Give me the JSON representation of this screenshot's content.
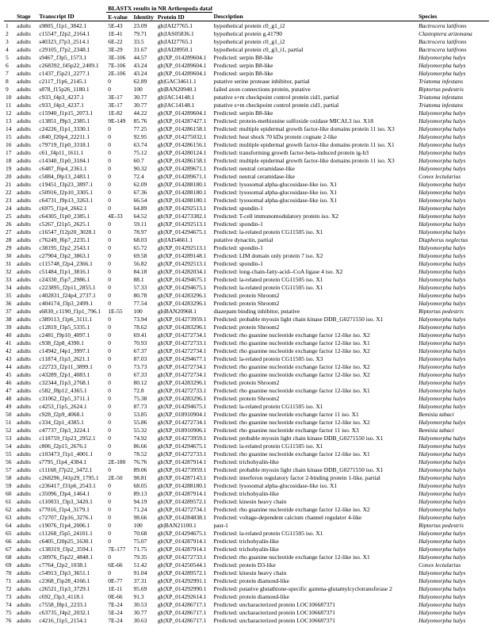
{
  "header": {
    "blastx_group": "BLASTX results in NR Arthropoda database (E-value ≤ 1E-10)",
    "cols": {
      "num": "",
      "stage": "Stage",
      "tid": "Transcript ID",
      "evalue": "E-value",
      "identity": "Identity",
      "pid": "Protein ID",
      "desc": "Description",
      "species": "Species"
    }
  },
  "rows": [
    {
      "n": "1",
      "stage": "adults",
      "tid": "s9805_f1p1_3842.1",
      "e": "5E-43",
      "id": "23.09",
      "pid": "gb|JAI27765.1",
      "desc": "hypothetical protein c0_g1_i2",
      "sp": "Bactrocera latifrons"
    },
    {
      "n": "2",
      "stage": "adults",
      "tid": "c15547_f2p2_2164.1",
      "e": "1E-41",
      "id": "79.71",
      "pid": "gb|JAS05836.1",
      "desc": "hypothetical protein g.41790",
      "sp": "Clastoptera arizonana"
    },
    {
      "n": "3",
      "stage": "adults",
      "tid": "s40323_f7p3_2514.1",
      "e": "6E-22",
      "id": "33.5",
      "pid": "gb|JAI27765.1",
      "desc": "hypothetical protein c0_g1_i2",
      "sp": "Bactrocera latifrons"
    },
    {
      "n": "4",
      "stage": "adults",
      "tid": "c29105_f7p2_2348.1",
      "e": "3E-29",
      "id": "31.67",
      "pid": "gb|JAI28950.1",
      "desc": "hypothetical protein c0_g3_i1, partial",
      "sp": "Bactrocera latifrons"
    },
    {
      "n": "5",
      "stage": "adults",
      "tid": "s9467_f3p5_1573.1",
      "e": "3E-106",
      "id": "44.57",
      "pid": "gb|XP_014289604.1",
      "desc": "Predicted: serpin B8-like",
      "sp": "Halyomorpha halys"
    },
    {
      "n": "6",
      "stage": "adults",
      "tid": "c268392_f45p22_2409.1",
      "e": "7E-106",
      "id": "43.24",
      "pid": "gb|XP_014289604.1",
      "desc": "Predicted: serpin B8-like",
      "sp": "Halyomorpha halys"
    },
    {
      "n": "7",
      "stage": "adults",
      "tid": "c1437_f5p21_2277.1",
      "e": "2E-106",
      "id": "43.24",
      "pid": "gb|XP_014289604.1",
      "desc": "Predicted: serpin B8-like",
      "sp": "Halyomorpha halys"
    },
    {
      "n": "8",
      "stage": "adults",
      "tid": "c2117_f1p6_2145.1",
      "e": "0",
      "id": "62.89",
      "pid": "gb|GAC34611.1",
      "desc": "putative serine protease inhibitor, partial",
      "sp": "Triatoma infestans"
    },
    {
      "n": "9",
      "stage": "adults",
      "tid": "s878_f15p26_1180.1",
      "e": "0",
      "id": "100",
      "pid": "gb|BAN20940.1",
      "desc": "failed axon connections protein, putative",
      "sp": "Riptortus pedestris"
    },
    {
      "n": "10",
      "stage": "adults",
      "tid": "c933_f4p3_4237.1",
      "e": "3E-17",
      "id": "30.77",
      "pid": "gb|JAC14148.1",
      "desc": "putative s+m checkpoint control protein cid1, partial",
      "sp": "Triatoma infestans"
    },
    {
      "n": "11",
      "stage": "adults",
      "tid": "c933_f4p3_4237.1",
      "e": "3E-17",
      "id": "30.77",
      "pid": "gb|JAC14148.1",
      "desc": "putative s+m checkpoint control protein cid1, partial",
      "sp": "Triatoma infestans"
    },
    {
      "n": "12",
      "stage": "adults",
      "tid": "c15940_f1p15_2073.1",
      "e": "1E-82",
      "id": "44.22",
      "pid": "gb|XP_014289604.1",
      "desc": "Predicted: serpin B8-like",
      "sp": "Halyomorpha halys"
    },
    {
      "n": "13",
      "stage": "adults",
      "tid": "c13851_f9p3_2385.1",
      "e": "9E-149",
      "id": "85.76",
      "pid": "gb|XP_014287427.1",
      "desc": "Predicted: protein-methionine sulfoxide oxidase MICAL3 iso. X18",
      "sp": "Halyomorpha halys"
    },
    {
      "n": "14",
      "stage": "adults",
      "tid": "c24226_f1p1_3330.1",
      "e": "0",
      "id": "77.25",
      "pid": "gb|XP_014286158.1",
      "desc": "Predicted: multiple epidermal growth factor-like domains protein 11 iso. X3",
      "sp": "Halyomorpha halys"
    },
    {
      "n": "15",
      "stage": "adults",
      "tid": "c840_f20p4_22211.1",
      "e": "0",
      "id": "92.95",
      "pid": "gb|XP_014275032.1",
      "desc": "Predicted: heat shock 70 kDa protein cognate 2-like",
      "sp": "Halyomorpha halys"
    },
    {
      "n": "16",
      "stage": "adults",
      "tid": "c79719_f1p0_3318.1",
      "e": "0",
      "id": "63.74",
      "pid": "gb|XP_014286156.1",
      "desc": "Predicted: multiple epidermal growth factor-like domains protein 11 iso. X1",
      "sp": "Halyomorpha halys"
    },
    {
      "n": "17",
      "stage": "adults",
      "tid": "c61_f4p11_1611.1",
      "e": "0",
      "id": "75.12",
      "pid": "gb|XP_014280124.1",
      "desc": "Predicted: transforming growth factor-beta-induced protein ig-h3",
      "sp": "Halyomorpha halys"
    },
    {
      "n": "18",
      "stage": "adults",
      "tid": "c14340_f1p0_3184.1",
      "e": "0",
      "id": "60.7",
      "pid": "gb|XP_014286158.1",
      "desc": "Predicted: multiple epidermal growth factor-like domains protein 11 iso. X3",
      "sp": "Halyomorpha halys"
    },
    {
      "n": "19",
      "stage": "adults",
      "tid": "c6487_f6p4_2361.1",
      "e": "0",
      "id": "90.32",
      "pid": "gb|XP_014289671.1",
      "desc": "Predicted: neutral ceramidase-like",
      "sp": "Halyomorpha halys"
    },
    {
      "n": "20",
      "stage": "adults",
      "tid": "c5884_f8p13_2483.1",
      "e": "0",
      "id": "72.4",
      "pid": "gb|XP_014289671.1",
      "desc": "Predicted: neutral ceramidase-like",
      "sp": "Conex lectularius"
    },
    {
      "n": "21",
      "stage": "adults",
      "tid": "c19451_f3p23_3897.1",
      "e": "0",
      "id": "62.09",
      "pid": "gb|XP_014288180.1",
      "desc": "Predicted: lysosomal alpha-glucosidase-like iso. X1",
      "sp": "Halyomorpha halys"
    },
    {
      "n": "22",
      "stage": "adults",
      "tid": "c50916_f2p10_3305.1",
      "e": "0",
      "id": "67.36",
      "pid": "gb|XP_014288180.1",
      "desc": "Predicted: lysosomal alpha-glucosidase-like iso. X1",
      "sp": "Halyomorpha halys"
    },
    {
      "n": "23",
      "stage": "adults",
      "tid": "c64731_f9p13_3263.1",
      "e": "0",
      "id": "66.54",
      "pid": "gb|XP_014288180.1",
      "desc": "Predicted: lysosomal alpha-glucosidase-like iso. X1",
      "sp": "Halyomorpha halys"
    },
    {
      "n": "24",
      "stage": "adults",
      "tid": "c6975_f1p4_2662.1",
      "e": "0",
      "id": "64.89",
      "pid": "gb|XP_014292513.1",
      "desc": "Predicted: spondin-1",
      "sp": "Halyomorpha halys"
    },
    {
      "n": "25",
      "stage": "adults",
      "tid": "c64305_f1p0_2385.1",
      "e": "4E-33",
      "id": "64.52",
      "pid": "gb|XP_014273382.1",
      "desc": "Predicted: T-cell immunomodulatory protein iso. X2",
      "sp": "Halyomorpha halys"
    },
    {
      "n": "26",
      "stage": "adults",
      "tid": "c5267_f21p5_2625.1",
      "e": "0",
      "id": "59.11",
      "pid": "gb|XP_014292513.1",
      "desc": "Predicted: spondin-1",
      "sp": "Halyomorpha halys"
    },
    {
      "n": "27",
      "stage": "adults",
      "tid": "c16547_f12p20_3028.1",
      "e": "0",
      "id": "78.97",
      "pid": "gb|XP_014294675.1",
      "desc": "Predicted: la-related protein CG11505 iso. X1",
      "sp": "Halyomorpha halys"
    },
    {
      "n": "28",
      "stage": "adults",
      "tid": "c76249_f6p7_2235.1",
      "e": "0",
      "id": "68.03",
      "pid": "gb|JAI54661.1",
      "desc": "putative dynactin, partial",
      "sp": "Diaphorus neglectus"
    },
    {
      "n": "29",
      "stage": "adults",
      "tid": "c38195_f2p2_2543.1",
      "e": "0",
      "id": "65.72",
      "pid": "gb|XP_014292513.1",
      "desc": "Predicted: spondin-1",
      "sp": "Halyomorpha halys"
    },
    {
      "n": "30",
      "stage": "adults",
      "tid": "c27904_f3p2_3863.1",
      "e": "0",
      "id": "69.58",
      "pid": "gb|XP_014289148.1",
      "desc": "Predicted: LIM domain only protein 7 iso. X2",
      "sp": "Halyomorpha halys"
    },
    {
      "n": "31",
      "stage": "adults",
      "tid": "c115748_f2p4_2366.1",
      "e": "0",
      "id": "56.82",
      "pid": "gb|XP_014292513.1",
      "desc": "Predicted: spondin-1",
      "sp": "Halyomorpha halys"
    },
    {
      "n": "32",
      "stage": "adults",
      "tid": "c51484_f1p1_3816.1",
      "e": "0",
      "id": "84.18",
      "pid": "gb|XP_014282034.1",
      "desc": "Predicted: long-chain-fatty-acid--CoA ligase 4 iso. X2",
      "sp": "Halyomorpha halys"
    },
    {
      "n": "33",
      "stage": "adults",
      "tid": "c24330_f5p7_2986.1",
      "e": "0",
      "id": "88.1",
      "pid": "gb|XP_014294675.1",
      "desc": "Predicted: la-related protein CG11505 iso. X1",
      "sp": "Halyomorpha halys"
    },
    {
      "n": "34",
      "stage": "adults",
      "tid": "c223895_f2p11_2855.1",
      "e": "0",
      "id": "57.33",
      "pid": "gb|XP_014294675.1",
      "desc": "Predicted: la-related protein CG11505 iso. X1",
      "sp": "Halyomorpha halys"
    },
    {
      "n": "35",
      "stage": "adults",
      "tid": "c402831_f24p4_2737.1",
      "e": "0",
      "id": "80.78",
      "pid": "gb|XP_014283296.1",
      "desc": "Predicted: protein Shroom2",
      "sp": "Halyomorpha halys"
    },
    {
      "n": "36",
      "stage": "adults",
      "tid": "c404174_f3p3_2499.1",
      "e": "0",
      "id": "77.54",
      "pid": "gb|XP_014283296.1",
      "desc": "Predicted: protein Shroom2",
      "sp": "Halyomorpha halys"
    },
    {
      "n": "37",
      "stage": "adults",
      "tid": "s6830_c1190_f1p1_796.1",
      "e": "1E-55",
      "id": "100",
      "pid": "gb|BAN20968.1",
      "desc": "diazepam binding inhibitor, putative",
      "sp": "Riptortus pedestris"
    },
    {
      "n": "38",
      "stage": "adults",
      "tid": "c389113_f1p6_3111.1",
      "e": "0",
      "id": "73.94",
      "pid": "gb|XP_014273959.1",
      "desc": "Predicted: probable myosin light chain kinase DDB_G0271550 iso. X1",
      "sp": "Halyomorpha halys"
    },
    {
      "n": "39",
      "stage": "adults",
      "tid": "c12819_f3p5_5335.1",
      "e": "0",
      "id": "78.62",
      "pid": "gb|XP_014283296.1",
      "desc": "Predicted: protein Shroom2",
      "sp": "Halyomorpha halys"
    },
    {
      "n": "40",
      "stage": "adults",
      "tid": "c2481_f9p10_4097.1",
      "e": "0",
      "id": "69.41",
      "pid": "gb|XP_014272734.1",
      "desc": "Predicted: rho guanine nucleotide exchange factor 12-like iso. X2",
      "sp": "Halyomorpha halys"
    },
    {
      "n": "41",
      "stage": "adults",
      "tid": "c938_f2p8_4390.1",
      "e": "0",
      "id": "70.93",
      "pid": "gb|XP_014272733.1",
      "desc": "Predicted: rho guanine nucleotide exchange factor 12-like iso. X1",
      "sp": "Halyomorpha halys"
    },
    {
      "n": "42",
      "stage": "adults",
      "tid": "c14942_f4p1_3997.1",
      "e": "0",
      "id": "67.37",
      "pid": "gb|XP_014272734.1",
      "desc": "Predicted: rho guanine nucleotide exchange factor 12-like iso. X2",
      "sp": "Halyomorpha halys"
    },
    {
      "n": "43",
      "stage": "adults",
      "tid": "c11874_f1p3_2621.1",
      "e": "0",
      "id": "87.03",
      "pid": "gb|XP_014294677.1",
      "desc": "Predicted: la-related protein CG11505 iso. X3",
      "sp": "Halyomorpha halys"
    },
    {
      "n": "44",
      "stage": "adults",
      "tid": "c22723_f2p11_3899.1",
      "e": "0",
      "id": "73.73",
      "pid": "gb|XP_014272734.1",
      "desc": "Predicted: rho guanine nucleotide exchange factor 12-like iso. X2",
      "sp": "Halyomorpha halys"
    },
    {
      "n": "45",
      "stage": "adults",
      "tid": "c43289_f2p1_4083.1",
      "e": "0",
      "id": "67.33",
      "pid": "gb|XP_014272734.1",
      "desc": "Predicted: rho guanine nucleotide exchange factor 12-like iso. X2",
      "sp": "Halyomorpha halys"
    },
    {
      "n": "46",
      "stage": "adults",
      "tid": "c32344_f1p3_2768.1",
      "e": "0",
      "id": "80.12",
      "pid": "gb|XP_014283296.1",
      "desc": "Predicted: protein Shroom2",
      "sp": "Halyomorpha halys"
    },
    {
      "n": "47",
      "stage": "adults",
      "tid": "c582_f8p12_4365.1",
      "e": "0",
      "id": "72.8",
      "pid": "gb|XP_014272733.1",
      "desc": "Predicted: rho guanine nucleotide exchange factor 12-like iso. X1",
      "sp": "Halyomorpha halys"
    },
    {
      "n": "48",
      "stage": "adults",
      "tid": "c31062_f2p5_3711.1",
      "e": "0",
      "id": "75.38",
      "pid": "gb|XP_014283296.1",
      "desc": "Predicted: protein Shroom2",
      "sp": "Halyomorpha halys"
    },
    {
      "n": "49",
      "stage": "adults",
      "tid": "c4253_f1p5_2624.1",
      "e": "0",
      "id": "87.73",
      "pid": "gb|XP_014294675.1",
      "desc": "Predicted: la-related protein CG11505 iso. X1",
      "sp": "Halyomorpha halys"
    },
    {
      "n": "50",
      "stage": "adults",
      "tid": "c928_f2p9_4068.1",
      "e": "0",
      "id": "53.85",
      "pid": "gb|XP_018910904.1",
      "desc": "Predicted: rho guanine nucleotide exchange factor 11 iso. X1",
      "sp": "Bemisia tabaci"
    },
    {
      "n": "51",
      "stage": "adults",
      "tid": "c334_f2p1_4385.1",
      "e": "0",
      "id": "55.86",
      "pid": "gb|XP_014272734.1",
      "desc": "Predicted: rho guanine nucleotide exchange factor 12-like iso. X2",
      "sp": "Halyomorpha halys"
    },
    {
      "n": "52",
      "stage": "adults",
      "tid": "c47737_f3p3_3224.1",
      "e": "0",
      "id": "55.32",
      "pid": "gb|XP_018910906.1",
      "desc": "Predicted: rho guanine nucleotide exchange factor 11 iso. X3",
      "sp": "Bemisia tabaci"
    },
    {
      "n": "53",
      "stage": "adults",
      "tid": "c118759_f1p23_2952.1",
      "e": "0",
      "id": "74.92",
      "pid": "gb|XP_014273959.1",
      "desc": "Predicted: probable myosin light chain kinase DDB_G0271550 iso. X1",
      "sp": "Halyomorpha halys"
    },
    {
      "n": "54",
      "stage": "adults",
      "tid": "c806_f2p15_2676.1",
      "e": "0",
      "id": "86.66",
      "pid": "gb|XP_014294675.1",
      "desc": "Predicted: la-related protein CG11505 iso. X1",
      "sp": "Halyomorpha halys"
    },
    {
      "n": "55",
      "stage": "adults",
      "tid": "c103473_f1p1_4001.1",
      "e": "0",
      "id": "78.52",
      "pid": "gb|XP_014272733.1",
      "desc": "Predicted: rho guanine nucleotide exchange factor 12-like iso. X1",
      "sp": "Halyomorpha halys"
    },
    {
      "n": "56",
      "stage": "adults",
      "tid": "s7795_f1p4_4384.1",
      "e": "2E-180",
      "id": "76.76",
      "pid": "gb|XP_014287914.1",
      "desc": "Predicted: trichohyalin-like",
      "sp": "Halyomorpha halys"
    },
    {
      "n": "57",
      "stage": "adults",
      "tid": "c11168_f7p22_3472.1",
      "e": "0",
      "id": "89.06",
      "pid": "gb|XP_014273959.1",
      "desc": "Predicted: probable myosin light chain kinase DDB_G0271550 iso. X1",
      "sp": "Halyomorpha halys"
    },
    {
      "n": "58",
      "stage": "adults",
      "tid": "c268296_f41p29_1795.1",
      "e": "2E-50",
      "id": "98.81",
      "pid": "gb|XP_014287143.1",
      "desc": "Predicted: interferon regulatory factor 2-binding protein 1-like, partial",
      "sp": "Halyomorpha halys"
    },
    {
      "n": "59",
      "stage": "adults",
      "tid": "c236417_f31p6_2543.1",
      "e": "0",
      "id": "68.05",
      "pid": "gb|XP_014288180.1",
      "desc": "Predicted: lysosomal alpha-glucosidase-like iso. X1",
      "sp": "Halyomorpha halys"
    },
    {
      "n": "60",
      "stage": "adults",
      "tid": "c35096_f3p4_1464.1",
      "e": "0",
      "id": "89.13",
      "pid": "gb|XP_014287914.1",
      "desc": "Predicted: trichohyalin-like",
      "sp": "Halyomorpha halys"
    },
    {
      "n": "61",
      "stage": "adults",
      "tid": "c110031_f3p3_3420.1",
      "e": "0",
      "id": "94.19",
      "pid": "gb|XP_014289572.1",
      "desc": "Predicted: kinesin heavy chain",
      "sp": "Halyomorpha halys"
    },
    {
      "n": "62",
      "stage": "adults",
      "tid": "s77016_f1p4_3179.1",
      "e": "0",
      "id": "71.24",
      "pid": "gb|XP_014272734.1",
      "desc": "Predicted: rho guanine nucleotide exchange factor 12-like iso. X2",
      "sp": "Halyomorpha halys"
    },
    {
      "n": "63",
      "stage": "adults",
      "tid": "c72707_f2p16_3276.1",
      "e": "0",
      "id": "98.66",
      "pid": "gb|XP_014284838.1",
      "desc": "Predicted: voltage-dependent calcium channel regulator 4-like",
      "sp": "Halyomorpha halys"
    },
    {
      "n": "64",
      "stage": "adults",
      "tid": "c19076_f1p4_2006.1",
      "e": "0",
      "id": "100",
      "pid": "gb|BAN21100.1",
      "desc": "past-1",
      "sp": "Riptortus pedestris"
    },
    {
      "n": "65",
      "stage": "adults",
      "tid": "c11268_f5p5_24101.1",
      "e": "0",
      "id": "70.68",
      "pid": "gb|XP_014294675.1",
      "desc": "Predicted: la-related protein CG11505 iso. X1",
      "sp": "Halyomorpha halys"
    },
    {
      "n": "66",
      "stage": "adults",
      "tid": "c6405_f20p25_1630.1",
      "e": "0",
      "id": "75.07",
      "pid": "gb|XP_014287914.1",
      "desc": "Predicted: trichohyalin-like",
      "sp": "Halyomorpha halys"
    },
    {
      "n": "67",
      "stage": "adults",
      "tid": "c138319_f3p2_3594.1",
      "e": "7E-177",
      "id": "71.75",
      "pid": "gb|XP_014287914.1",
      "desc": "Predicted: trichohyalin-like",
      "sp": "Halyomorpha halys"
    },
    {
      "n": "68",
      "stage": "adults",
      "tid": "c30976_f5p22_4848.1",
      "e": "0",
      "id": "79.35",
      "pid": "gb|XP_014272733.1",
      "desc": "Predicted: rho guanine nucleotide exchange factor 12-like iso. X1",
      "sp": "Halyomorpha halys"
    },
    {
      "n": "69",
      "stage": "adults",
      "tid": "c7764_f2p2_1038.1",
      "e": "6E-66",
      "id": "51.42",
      "pid": "gb|XP_014250544.1",
      "desc": "Predicted: protein D3-like",
      "sp": "Conex lectularius"
    },
    {
      "n": "70",
      "stage": "adults",
      "tid": "c54913_f3p3_3651.1",
      "e": "0",
      "id": "91.04",
      "pid": "gb|XP_014289572.1",
      "desc": "Predicted: kinesin heavy chain",
      "sp": "Halyomorpha halys"
    },
    {
      "n": "71",
      "stage": "adults",
      "tid": "c2368_f5p28_4166.1",
      "e": "0E-77",
      "id": "37.31",
      "pid": "gb|XP_014292991.1",
      "desc": "Predicted: protein diamond-like",
      "sp": "Halyomorpha halys"
    },
    {
      "n": "72",
      "stage": "adults",
      "tid": "c26521_f1p3_3729.1",
      "e": "1E-11",
      "id": "95.69",
      "pid": "gb|XP_014292990.1",
      "desc": "Predicted: putative glutathione-specific gamma-glutamylcyclotransferase 2",
      "sp": "Halyomorpha halys"
    },
    {
      "n": "73",
      "stage": "adults",
      "tid": "c692_f3p3_4118.1",
      "e": "0E-66",
      "id": "91.3",
      "pid": "gb|XP_014292614.1",
      "desc": "Predicted: protein diamond-like",
      "sp": "Halyomorpha halys"
    },
    {
      "n": "74",
      "stage": "adults",
      "tid": "c7558_f8p1_2233.1",
      "e": "7E-24",
      "id": "30.53",
      "pid": "gb|XP_014286717.1",
      "desc": "Predicted: uncharacterized protein LOC106687371",
      "sp": "Halyomorpha halys"
    },
    {
      "n": "75",
      "stage": "adults",
      "tid": "c63735_f4p2_2032.1",
      "e": "5E-24",
      "id": "30.77",
      "pid": "gb|XP_014286717.1",
      "desc": "Predicted: uncharacterized protein LOC106687371",
      "sp": "Halyomorpha halys"
    },
    {
      "n": "76",
      "stage": "adults",
      "tid": "c4216_f1p5_2154.1",
      "e": "7E-24",
      "id": "30.63",
      "pid": "gb|XP_014286717.1",
      "desc": "Predicted: uncharacterized protein LOC106687371",
      "sp": "Halyomorpha halys"
    }
  ]
}
